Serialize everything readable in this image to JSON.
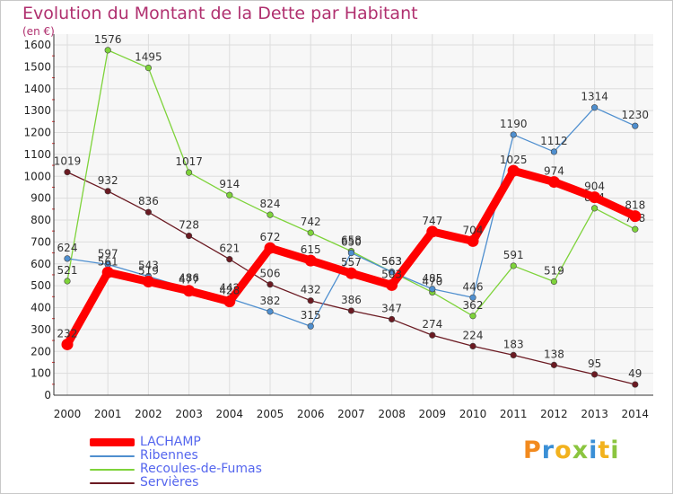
{
  "chart_data": {
    "type": "line",
    "title": "Evolution du Montant de la Dette par Habitant",
    "unit_label": "(en €)",
    "x": [
      "2000",
      "2001",
      "2002",
      "2003",
      "2004",
      "2005",
      "2006",
      "2007",
      "2008",
      "2009",
      "2010",
      "2011",
      "2012",
      "2013",
      "2014"
    ],
    "ylim": [
      0,
      1600
    ],
    "yticks": [
      0,
      100,
      200,
      300,
      400,
      500,
      600,
      700,
      800,
      900,
      1000,
      1100,
      1200,
      1300,
      1400,
      1500,
      1600
    ],
    "grid": true,
    "legend_position": "bottom-left",
    "series": [
      {
        "name": "Servières",
        "color": "#6b1a22",
        "values": [
          1019,
          932,
          836,
          728,
          621,
          506,
          432,
          386,
          347,
          274,
          224,
          183,
          138,
          95,
          49
        ]
      },
      {
        "name": "Recoules-de-Fumas",
        "color": "#7ed33a",
        "values": [
          521,
          1576,
          1495,
          1017,
          914,
          824,
          742,
          658,
          563,
          470,
          362,
          591,
          519,
          854,
          758
        ]
      },
      {
        "name": "Ribennes",
        "color": "#4f8fcf",
        "values": [
          624,
          597,
          543,
          486,
          442,
          382,
          315,
          650,
          563,
          485,
          446,
          1190,
          1112,
          1314,
          1230
        ]
      },
      {
        "name": "LACHAMP",
        "color": "#ff0000",
        "values": [
          232,
          561,
          519,
          477,
          428,
          672,
          615,
          557,
          503,
          747,
          704,
          1025,
          974,
          904,
          818
        ]
      }
    ]
  },
  "legend": {
    "items": [
      {
        "name": "LACHAMP",
        "color": "#ff0000"
      },
      {
        "name": "Ribennes",
        "color": "#4f8fcf"
      },
      {
        "name": "Recoules-de-Fumas",
        "color": "#7ed33a"
      },
      {
        "name": "Servières",
        "color": "#6b1a22"
      }
    ]
  },
  "logo": {
    "text": "Proxiti"
  }
}
